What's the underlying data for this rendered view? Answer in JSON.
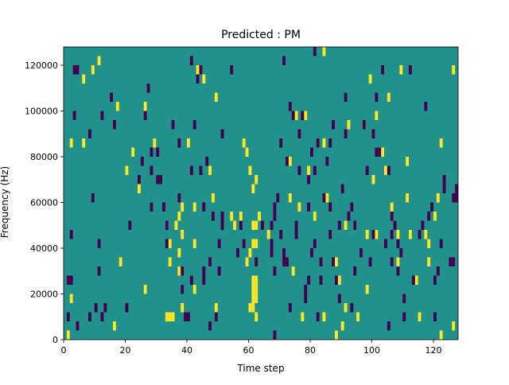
{
  "chart_data": {
    "type": "heatmap",
    "title": "Predicted : PM",
    "xlabel": "Time step",
    "ylabel": "Frequency (Hz)",
    "xlim": [
      0,
      128
    ],
    "ylim": [
      0,
      128000
    ],
    "x_ticks": [
      0,
      20,
      40,
      60,
      80,
      100,
      120
    ],
    "y_ticks": [
      0,
      20000,
      40000,
      60000,
      80000,
      100000,
      120000
    ],
    "x_tick_labels": [
      "0",
      "20",
      "40",
      "60",
      "80",
      "100",
      "120"
    ],
    "y_tick_labels": [
      "0",
      "20000",
      "40000",
      "60000",
      "80000",
      "100000",
      "120000"
    ],
    "colors": {
      "background": "#21918c",
      "high": "#fde725",
      "low": "#440154"
    },
    "cell_height_hz": 4000,
    "high_cells": [
      [
        33,
        8000
      ],
      [
        34,
        8000
      ],
      [
        35,
        8000
      ],
      [
        61,
        20000
      ],
      [
        62,
        20000
      ],
      [
        61,
        24000
      ],
      [
        62,
        24000
      ],
      [
        61,
        16000
      ],
      [
        62,
        16000
      ],
      [
        60,
        12000
      ],
      [
        61,
        12000
      ],
      [
        62,
        8000
      ],
      [
        59,
        32000
      ],
      [
        60,
        36000
      ],
      [
        61,
        40000
      ],
      [
        62,
        40000
      ],
      [
        61,
        48000
      ],
      [
        62,
        48000
      ],
      [
        1,
        0
      ],
      [
        2,
        16000
      ],
      [
        2,
        84000
      ],
      [
        6,
        112000
      ],
      [
        6,
        84000
      ],
      [
        9,
        116000
      ],
      [
        11,
        120000
      ],
      [
        16,
        4000
      ],
      [
        17,
        100000
      ],
      [
        18,
        32000
      ],
      [
        20,
        72000
      ],
      [
        22,
        80000
      ],
      [
        24,
        64000
      ],
      [
        26,
        20000
      ],
      [
        26,
        100000
      ],
      [
        29,
        84000
      ],
      [
        33,
        48000
      ],
      [
        34,
        32000
      ],
      [
        34,
        40000
      ],
      [
        36,
        48000
      ],
      [
        37,
        28000
      ],
      [
        37,
        36000
      ],
      [
        37,
        52000
      ],
      [
        38,
        56000
      ],
      [
        38,
        12000
      ],
      [
        38,
        44000
      ],
      [
        40,
        84000
      ],
      [
        42,
        56000
      ],
      [
        42,
        40000
      ],
      [
        42,
        20000
      ],
      [
        43,
        116000
      ],
      [
        45,
        112000
      ],
      [
        47,
        72000
      ],
      [
        48,
        60000
      ],
      [
        49,
        12000
      ],
      [
        49,
        104000
      ],
      [
        54,
        52000
      ],
      [
        55,
        48000
      ],
      [
        57,
        52000
      ],
      [
        58,
        84000
      ],
      [
        59,
        80000
      ],
      [
        60,
        72000
      ],
      [
        61,
        64000
      ],
      [
        62,
        68000
      ],
      [
        63,
        52000
      ],
      [
        66,
        44000
      ],
      [
        73,
        76000
      ],
      [
        73,
        60000
      ],
      [
        74,
        28000
      ],
      [
        75,
        96000
      ],
      [
        76,
        56000
      ],
      [
        77,
        8000
      ],
      [
        78,
        96000
      ],
      [
        79,
        72000
      ],
      [
        81,
        52000
      ],
      [
        84,
        8000
      ],
      [
        84,
        124000
      ],
      [
        84,
        84000
      ],
      [
        85,
        60000
      ],
      [
        88,
        0
      ],
      [
        88,
        32000
      ],
      [
        89,
        24000
      ],
      [
        91,
        48000
      ],
      [
        92,
        92000
      ],
      [
        91,
        12000
      ],
      [
        90,
        4000
      ],
      [
        94,
        48000
      ],
      [
        95,
        8000
      ],
      [
        97,
        92000
      ],
      [
        98,
        20000
      ],
      [
        98,
        44000
      ],
      [
        99,
        112000
      ],
      [
        100,
        68000
      ],
      [
        101,
        44000
      ],
      [
        101,
        96000
      ],
      [
        103,
        80000
      ],
      [
        104,
        72000
      ],
      [
        105,
        104000
      ],
      [
        106,
        56000
      ],
      [
        108,
        32000
      ],
      [
        108,
        44000
      ],
      [
        109,
        116000
      ],
      [
        111,
        76000
      ],
      [
        111,
        60000
      ],
      [
        112,
        44000
      ],
      [
        114,
        24000
      ],
      [
        115,
        8000
      ],
      [
        117,
        44000
      ],
      [
        118,
        40000
      ],
      [
        118,
        32000
      ],
      [
        120,
        52000
      ],
      [
        121,
        60000
      ],
      [
        122,
        84000
      ],
      [
        122,
        0
      ],
      [
        126,
        4000
      ],
      [
        126,
        116000
      ]
    ],
    "low_cells": [
      [
        1,
        8000
      ],
      [
        1,
        24000
      ],
      [
        2,
        24000
      ],
      [
        4,
        116000
      ],
      [
        3,
        116000
      ],
      [
        2,
        44000
      ],
      [
        3,
        96000
      ],
      [
        4,
        4000
      ],
      [
        8,
        8000
      ],
      [
        8,
        88000
      ],
      [
        9,
        60000
      ],
      [
        10,
        12000
      ],
      [
        11,
        28000
      ],
      [
        11,
        40000
      ],
      [
        12,
        8000
      ],
      [
        12,
        96000
      ],
      [
        13,
        12000
      ],
      [
        15,
        104000
      ],
      [
        16,
        92000
      ],
      [
        20,
        12000
      ],
      [
        21,
        48000
      ],
      [
        24,
        68000
      ],
      [
        25,
        76000
      ],
      [
        26,
        96000
      ],
      [
        27,
        108000
      ],
      [
        28,
        80000
      ],
      [
        28,
        72000
      ],
      [
        28,
        56000
      ],
      [
        30,
        80000
      ],
      [
        30,
        68000
      ],
      [
        31,
        68000
      ],
      [
        32,
        56000
      ],
      [
        33,
        48000
      ],
      [
        33,
        40000
      ],
      [
        35,
        92000
      ],
      [
        37,
        84000
      ],
      [
        37,
        60000
      ],
      [
        38,
        28000
      ],
      [
        38,
        20000
      ],
      [
        39,
        8000
      ],
      [
        40,
        8000
      ],
      [
        41,
        120000
      ],
      [
        41,
        72000
      ],
      [
        41,
        24000
      ],
      [
        42,
        92000
      ],
      [
        43,
        112000
      ],
      [
        44,
        116000
      ],
      [
        44,
        72000
      ],
      [
        45,
        24000
      ],
      [
        45,
        56000
      ],
      [
        45,
        28000
      ],
      [
        46,
        76000
      ],
      [
        47,
        4000
      ],
      [
        47,
        32000
      ],
      [
        48,
        52000
      ],
      [
        49,
        8000
      ],
      [
        50,
        28000
      ],
      [
        50,
        40000
      ],
      [
        51,
        52000
      ],
      [
        51,
        48000
      ],
      [
        51,
        88000
      ],
      [
        54,
        116000
      ],
      [
        56,
        36000
      ],
      [
        57,
        48000
      ],
      [
        58,
        40000
      ],
      [
        62,
        32000
      ],
      [
        64,
        48000
      ],
      [
        67,
        48000
      ],
      [
        67,
        36000
      ],
      [
        68,
        52000
      ],
      [
        68,
        56000
      ],
      [
        67,
        40000
      ],
      [
        68,
        28000
      ],
      [
        68,
        0
      ],
      [
        69,
        60000
      ],
      [
        70,
        44000
      ],
      [
        70,
        84000
      ],
      [
        71,
        36000
      ],
      [
        71,
        32000
      ],
      [
        71,
        120000
      ],
      [
        72,
        32000
      ],
      [
        72,
        76000
      ],
      [
        73,
        12000
      ],
      [
        73,
        100000
      ],
      [
        74,
        96000
      ],
      [
        75,
        48000
      ],
      [
        75,
        44000
      ],
      [
        76,
        72000
      ],
      [
        76,
        88000
      ],
      [
        77,
        96000
      ],
      [
        78,
        16000
      ],
      [
        78,
        20000
      ],
      [
        79,
        24000
      ],
      [
        79,
        68000
      ],
      [
        79,
        56000
      ],
      [
        80,
        36000
      ],
      [
        80,
        80000
      ],
      [
        81,
        72000
      ],
      [
        81,
        124000
      ],
      [
        81,
        40000
      ],
      [
        82,
        8000
      ],
      [
        82,
        84000
      ],
      [
        83,
        24000
      ],
      [
        83,
        32000
      ],
      [
        84,
        60000
      ],
      [
        85,
        76000
      ],
      [
        86,
        44000
      ],
      [
        86,
        56000
      ],
      [
        86,
        84000
      ],
      [
        87,
        92000
      ],
      [
        87,
        32000
      ],
      [
        88,
        24000
      ],
      [
        89,
        16000
      ],
      [
        89,
        48000
      ],
      [
        90,
        64000
      ],
      [
        91,
        104000
      ],
      [
        91,
        88000
      ],
      [
        92,
        52000
      ],
      [
        93,
        12000
      ],
      [
        93,
        56000
      ],
      [
        94,
        28000
      ],
      [
        94,
        48000
      ],
      [
        96,
        36000
      ],
      [
        97,
        92000
      ],
      [
        98,
        72000
      ],
      [
        99,
        32000
      ],
      [
        100,
        44000
      ],
      [
        100,
        88000
      ],
      [
        101,
        104000
      ],
      [
        101,
        80000
      ],
      [
        102,
        80000
      ],
      [
        103,
        116000
      ],
      [
        104,
        40000
      ],
      [
        105,
        4000
      ],
      [
        105,
        72000
      ],
      [
        106,
        44000
      ],
      [
        106,
        52000
      ],
      [
        106,
        32000
      ],
      [
        107,
        48000
      ],
      [
        108,
        40000
      ],
      [
        108,
        28000
      ],
      [
        109,
        36000
      ],
      [
        110,
        8000
      ],
      [
        110,
        16000
      ],
      [
        112,
        116000
      ],
      [
        113,
        24000
      ],
      [
        115,
        44000
      ],
      [
        116,
        48000
      ],
      [
        117,
        100000
      ],
      [
        118,
        52000
      ],
      [
        119,
        56000
      ],
      [
        120,
        24000
      ],
      [
        120,
        8000
      ],
      [
        121,
        28000
      ],
      [
        122,
        40000
      ],
      [
        123,
        64000
      ],
      [
        123,
        68000
      ],
      [
        125,
        32000
      ],
      [
        126,
        32000
      ],
      [
        126,
        60000
      ],
      [
        127,
        64000
      ],
      [
        127,
        60000
      ]
    ]
  }
}
